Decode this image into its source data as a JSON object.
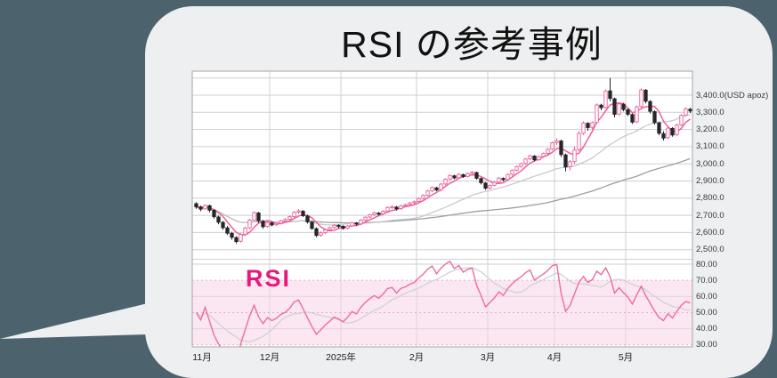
{
  "title": "RSI の参考事例",
  "rsi_panel_label": "RSI",
  "colors": {
    "background": "#4c636e",
    "bubble": "#edeff0",
    "chart_background": "#ffffff",
    "chart_border": "#a6a6a6",
    "grid": "#cfcfcf",
    "grid_dotted_pink": "#eaa9c7",
    "rsi_band_fill": "#f7d4e5",
    "candle_up": "#e8609f",
    "candle_down": "#262626",
    "ma_short_pink": "#ee5f9d",
    "ma_mid_gray": "#c6c6c6",
    "ma_long_gray": "#9e9e9e",
    "rsi_line": "#ee6ba1",
    "rsi_avg_line": "#ccd3d6",
    "rsi_label": "#e8197d",
    "axis_text": "#3a3a3a",
    "title_text": "#111111"
  },
  "chart_data": {
    "type": "candlestick",
    "title": "RSI の参考事例",
    "unit": "USD apoz",
    "legend_position": "none",
    "grid": true,
    "x_axis": {
      "labels": [
        "11月",
        "12月",
        "2025年",
        "2月",
        "3月",
        "4月",
        "5月"
      ],
      "month_start_indices": [
        0,
        17,
        33,
        50,
        66,
        81,
        97
      ]
    },
    "price_axis": {
      "labels": [
        "3,400.0(USD apoz)",
        "3,300.0",
        "3,200.0",
        "3,100.0",
        "3,000.0",
        "2,900.0",
        "2,800.0",
        "2,700.0",
        "2,600.0",
        "2,500.0"
      ],
      "values": [
        3400,
        3300,
        3200,
        3100,
        3000,
        2900,
        2800,
        2700,
        2600,
        2500
      ],
      "gridlines": [
        3500,
        3400,
        3300,
        3200,
        3100,
        3000,
        2900,
        2800,
        2700,
        2600,
        2500
      ],
      "range": [
        2450,
        3520
      ]
    },
    "rsi_axis": {
      "labels": [
        "80.00",
        "70.00",
        "60.00",
        "50.00",
        "40.00",
        "30.00"
      ],
      "values": [
        80,
        70,
        60,
        50,
        40,
        30
      ],
      "solid_lines": [
        80,
        60,
        40
      ],
      "dotted_lines": [
        70,
        50,
        30
      ],
      "band": [
        30,
        70
      ]
    },
    "indicators": {
      "price_ma_periods": [
        5,
        25,
        75
      ],
      "rsi_period": 14,
      "rsi_avg_period": 10
    },
    "candles_ohlc": [
      [
        2768,
        2776,
        2738,
        2749
      ],
      [
        2749,
        2757,
        2724,
        2736
      ],
      [
        2738,
        2764,
        2732,
        2758
      ],
      [
        2756,
        2762,
        2718,
        2730
      ],
      [
        2729,
        2736,
        2681,
        2692
      ],
      [
        2690,
        2698,
        2648,
        2660
      ],
      [
        2659,
        2667,
        2616,
        2628
      ],
      [
        2627,
        2638,
        2585,
        2596
      ],
      [
        2595,
        2604,
        2558,
        2572
      ],
      [
        2570,
        2579,
        2536,
        2547
      ],
      [
        2549,
        2596,
        2541,
        2589
      ],
      [
        2588,
        2634,
        2580,
        2626
      ],
      [
        2627,
        2680,
        2620,
        2672
      ],
      [
        2671,
        2723,
        2664,
        2716
      ],
      [
        2714,
        2720,
        2656,
        2668
      ],
      [
        2666,
        2674,
        2622,
        2634
      ],
      [
        2635,
        2666,
        2628,
        2658
      ],
      [
        2656,
        2663,
        2636,
        2644
      ],
      [
        2645,
        2660,
        2638,
        2653
      ],
      [
        2654,
        2674,
        2648,
        2668
      ],
      [
        2667,
        2683,
        2660,
        2676
      ],
      [
        2677,
        2699,
        2670,
        2692
      ],
      [
        2693,
        2724,
        2686,
        2718
      ],
      [
        2719,
        2736,
        2708,
        2726
      ],
      [
        2724,
        2730,
        2690,
        2698
      ],
      [
        2696,
        2704,
        2652,
        2662
      ],
      [
        2660,
        2668,
        2615,
        2624
      ],
      [
        2622,
        2630,
        2572,
        2583
      ],
      [
        2584,
        2606,
        2576,
        2598
      ],
      [
        2599,
        2622,
        2592,
        2615
      ],
      [
        2616,
        2635,
        2609,
        2628
      ],
      [
        2629,
        2649,
        2622,
        2642
      ],
      [
        2641,
        2648,
        2624,
        2635
      ],
      [
        2636,
        2642,
        2616,
        2624
      ],
      [
        2625,
        2644,
        2618,
        2638
      ],
      [
        2639,
        2663,
        2632,
        2657
      ],
      [
        2655,
        2661,
        2640,
        2649
      ],
      [
        2650,
        2678,
        2644,
        2672
      ],
      [
        2673,
        2695,
        2666,
        2689
      ],
      [
        2690,
        2709,
        2684,
        2703
      ],
      [
        2704,
        2721,
        2697,
        2715
      ],
      [
        2713,
        2719,
        2699,
        2708
      ],
      [
        2709,
        2730,
        2702,
        2724
      ],
      [
        2725,
        2752,
        2718,
        2746
      ],
      [
        2747,
        2757,
        2738,
        2750
      ],
      [
        2748,
        2754,
        2728,
        2738
      ],
      [
        2739,
        2762,
        2732,
        2756
      ],
      [
        2757,
        2768,
        2748,
        2762
      ],
      [
        2763,
        2778,
        2756,
        2772
      ],
      [
        2773,
        2786,
        2766,
        2779
      ],
      [
        2781,
        2804,
        2774,
        2798
      ],
      [
        2799,
        2822,
        2792,
        2816
      ],
      [
        2817,
        2848,
        2810,
        2842
      ],
      [
        2843,
        2868,
        2836,
        2862
      ],
      [
        2860,
        2866,
        2840,
        2848
      ],
      [
        2849,
        2888,
        2842,
        2882
      ],
      [
        2883,
        2916,
        2876,
        2910
      ],
      [
        2911,
        2938,
        2904,
        2932
      ],
      [
        2930,
        2936,
        2910,
        2918
      ],
      [
        2919,
        2945,
        2912,
        2939
      ],
      [
        2937,
        2943,
        2918,
        2926
      ],
      [
        2927,
        2950,
        2920,
        2944
      ],
      [
        2945,
        2957,
        2938,
        2951
      ],
      [
        2949,
        2955,
        2908,
        2916
      ],
      [
        2914,
        2920,
        2880,
        2890
      ],
      [
        2888,
        2894,
        2848,
        2858
      ],
      [
        2859,
        2880,
        2852,
        2874
      ],
      [
        2875,
        2898,
        2868,
        2892
      ],
      [
        2893,
        2923,
        2886,
        2917
      ],
      [
        2915,
        2921,
        2898,
        2908
      ],
      [
        2909,
        2944,
        2902,
        2938
      ],
      [
        2939,
        2968,
        2932,
        2962
      ],
      [
        2963,
        2990,
        2956,
        2984
      ],
      [
        2985,
        3007,
        2978,
        3001
      ],
      [
        3002,
        3034,
        2995,
        3028
      ],
      [
        3029,
        3053,
        3022,
        3047
      ],
      [
        3045,
        3051,
        3014,
        3023
      ],
      [
        3024,
        3048,
        3017,
        3042
      ],
      [
        3043,
        3066,
        3036,
        3060
      ],
      [
        3061,
        3091,
        3054,
        3085
      ],
      [
        3086,
        3129,
        3079,
        3123
      ],
      [
        3124,
        3149,
        3110,
        3134
      ],
      [
        3133,
        3140,
        3040,
        3054
      ],
      [
        3052,
        3060,
        2956,
        2982
      ],
      [
        2984,
        3022,
        2962,
        3012
      ],
      [
        3013,
        3100,
        3002,
        3082
      ],
      [
        3083,
        3190,
        3072,
        3177
      ],
      [
        3178,
        3248,
        3168,
        3238
      ],
      [
        3236,
        3242,
        3193,
        3211
      ],
      [
        3212,
        3248,
        3202,
        3240
      ],
      [
        3241,
        3352,
        3232,
        3343
      ],
      [
        3342,
        3350,
        3312,
        3327
      ],
      [
        3328,
        3433,
        3320,
        3424
      ],
      [
        3425,
        3500,
        3365,
        3381
      ],
      [
        3379,
        3386,
        3270,
        3288
      ],
      [
        3290,
        3356,
        3282,
        3349
      ],
      [
        3347,
        3354,
        3306,
        3317
      ],
      [
        3315,
        3321,
        3278,
        3289
      ],
      [
        3287,
        3294,
        3232,
        3243
      ],
      [
        3245,
        3340,
        3238,
        3332
      ],
      [
        3334,
        3440,
        3326,
        3431
      ],
      [
        3429,
        3436,
        3352,
        3365
      ],
      [
        3363,
        3370,
        3294,
        3306
      ],
      [
        3304,
        3312,
        3228,
        3240
      ],
      [
        3238,
        3246,
        3166,
        3178
      ],
      [
        3176,
        3190,
        3136,
        3150
      ],
      [
        3152,
        3216,
        3145,
        3208
      ],
      [
        3206,
        3214,
        3158,
        3168
      ],
      [
        3170,
        3234,
        3162,
        3226
      ],
      [
        3227,
        3290,
        3220,
        3282
      ],
      [
        3283,
        3328,
        3276,
        3320
      ],
      [
        3318,
        3326,
        3296,
        3308
      ]
    ]
  }
}
